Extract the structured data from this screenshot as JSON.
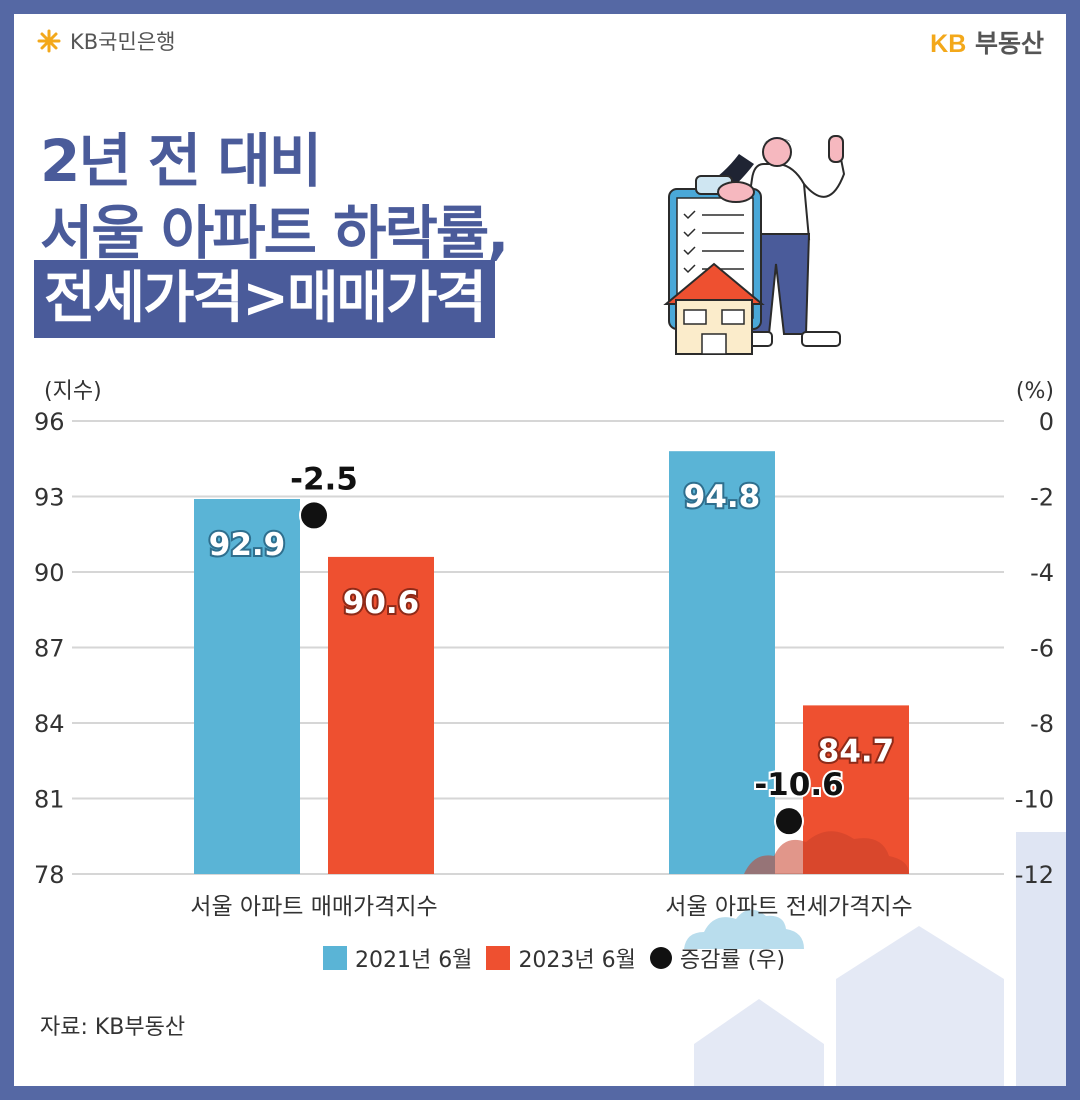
{
  "header": {
    "bank_logo_text": "KB국민은행",
    "brand_kb": "KB",
    "brand_name": "부동산"
  },
  "title": {
    "line1": "2년 전 대비",
    "line2": "서울 아파트 하락률,",
    "line3": "전세가격>매매가격"
  },
  "illustration": {
    "icon": "woman-with-checklist-and-house-illustration"
  },
  "colors": {
    "bar_2021": "#5ab4d6",
    "bar_2023": "#ee5030",
    "rate_dot": "#111111",
    "accent": "#4a5b9a"
  },
  "chart_data": {
    "type": "bar",
    "categories": [
      "서울 아파트 매매가격지수",
      "서울 아파트 전세가격지수"
    ],
    "series": [
      {
        "name": "2021년 6월",
        "values": [
          92.9,
          94.8
        ],
        "axis": "left"
      },
      {
        "name": "2023년 6월",
        "values": [
          90.6,
          84.7
        ],
        "axis": "left"
      },
      {
        "name": "증감률 (우)",
        "type": "scatter",
        "values": [
          -2.5,
          -10.6
        ],
        "axis": "right",
        "labels": [
          "-2.5",
          "-10.6"
        ]
      }
    ],
    "bar_labels": [
      [
        "92.9",
        "94.8"
      ],
      [
        "90.6",
        "84.7"
      ]
    ],
    "left_axis": {
      "unit": "(지수)",
      "ylim": [
        78,
        96
      ],
      "ticks": [
        "96",
        "93",
        "90",
        "87",
        "84",
        "81",
        "78"
      ]
    },
    "right_axis": {
      "unit": "(%)",
      "ylim": [
        -12,
        0
      ],
      "ticks": [
        "0",
        "-2",
        "-4",
        "-6",
        "-8",
        "-10",
        "-12"
      ]
    },
    "grid": true,
    "legend_position": "bottom"
  },
  "source": "자료: KB부동산"
}
